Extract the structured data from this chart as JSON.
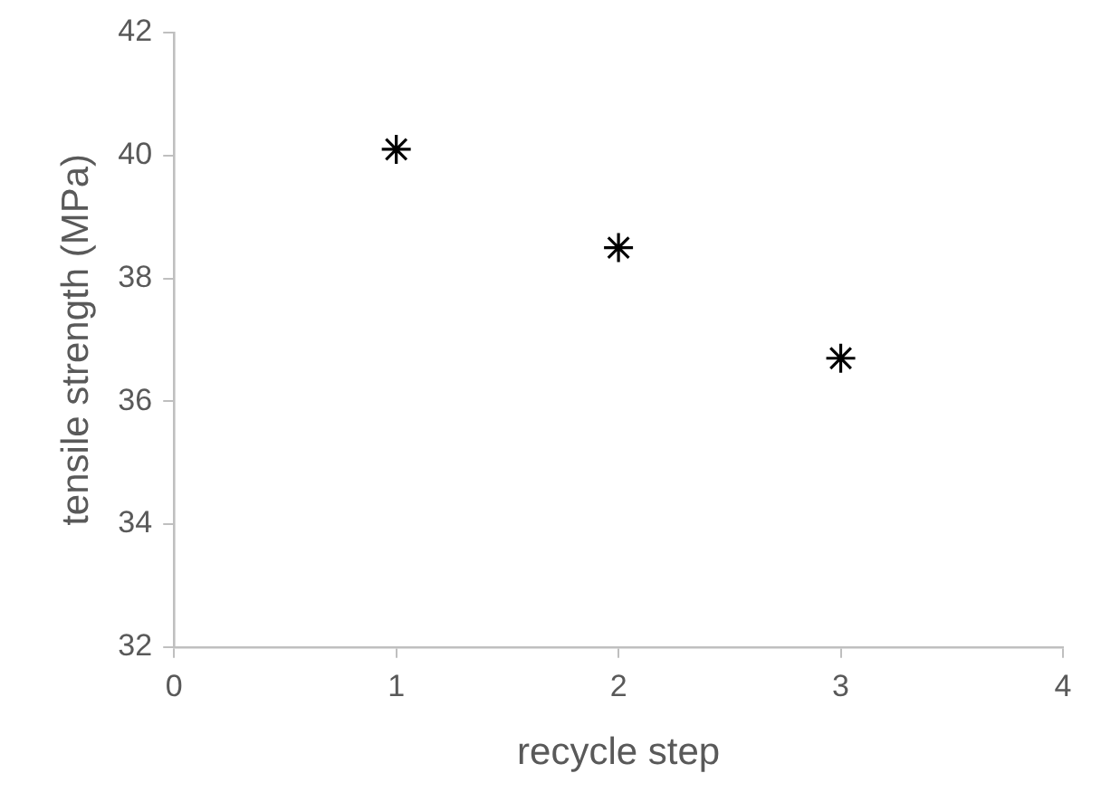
{
  "chart_data": {
    "type": "scatter",
    "xlabel": "recycle step",
    "ylabel": "tensile strength (MPa)",
    "x": [
      1,
      2,
      3
    ],
    "series": [
      {
        "color": "#000000",
        "values": [
          40.1,
          38.5,
          36.7
        ]
      }
    ],
    "xlim": [
      0,
      4
    ],
    "xticks": [
      0,
      1,
      2,
      3,
      4
    ],
    "ylim": [
      32,
      42
    ],
    "yticks": [
      32,
      34,
      36,
      38,
      40,
      42
    ],
    "grid": false,
    "legend": false,
    "marker": "cross"
  }
}
